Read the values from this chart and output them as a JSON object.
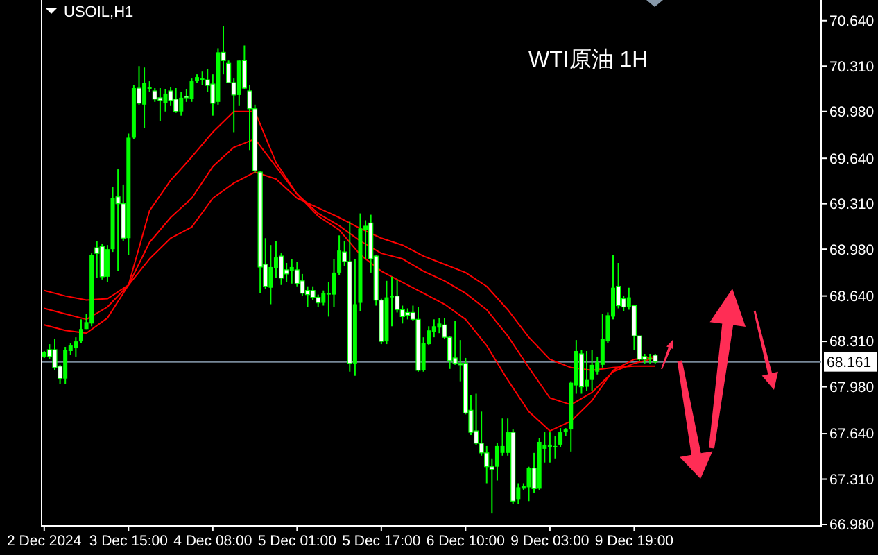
{
  "chart_data": {
    "type": "candlestick",
    "title": "USOIL,H1",
    "annotations": [
      "WTI原油 1H"
    ],
    "color": "#00ff00",
    "categories": [
      "2 Dec 2024",
      null,
      null,
      null,
      null,
      null,
      null,
      null,
      null,
      null,
      null,
      null,
      null,
      null,
      null,
      null,
      "3 Dec 15:00",
      null,
      null,
      null,
      null,
      null,
      null,
      null,
      null,
      null,
      null,
      null,
      null,
      null,
      null,
      null,
      "4 Dec 08:00",
      null,
      null,
      null,
      null,
      null,
      null,
      null,
      null,
      null,
      null,
      null,
      null,
      null,
      null,
      null,
      "5 Dec 01:00",
      null,
      null,
      null,
      null,
      null,
      null,
      null,
      null,
      null,
      null,
      null,
      null,
      null,
      null,
      null,
      "5 Dec 17:00",
      null,
      null,
      null,
      null,
      null,
      null,
      null,
      null,
      null,
      null,
      null,
      null,
      null,
      null,
      null,
      "6 Dec 10:00",
      null,
      null,
      null,
      null,
      null,
      null,
      null,
      null,
      null,
      null,
      null,
      null,
      null,
      null,
      null,
      "9 Dec 03:00",
      null,
      null,
      null,
      null,
      null,
      null,
      null,
      null,
      null,
      null,
      null,
      null,
      null,
      null,
      null,
      "9 Dec 19:00",
      null,
      null,
      null,
      null,
      null,
      null,
      null,
      null,
      null,
      null,
      null,
      null,
      null,
      null,
      null,
      null,
      null,
      null,
      null,
      null,
      null,
      null,
      null,
      null,
      null,
      null,
      null,
      null,
      null,
      null,
      null,
      null,
      null,
      null,
      null
    ],
    "ylim": [
      66.97,
      70.79
    ],
    "yticks": [
      {
        "value": 66.98,
        "label": "66.980"
      },
      {
        "value": 67.31,
        "label": "67.310"
      },
      {
        "value": 67.64,
        "label": "67.640"
      },
      {
        "value": 67.98,
        "label": "67.980"
      },
      {
        "value": 68.31,
        "label": "68.310"
      },
      {
        "value": 68.64,
        "label": "68.640"
      },
      {
        "value": 68.98,
        "label": "68.980"
      },
      {
        "value": 69.31,
        "label": "69.310"
      },
      {
        "value": 69.64,
        "label": "69.640"
      },
      {
        "value": 69.98,
        "label": "69.980"
      },
      {
        "value": 70.31,
        "label": "70.310"
      },
      {
        "value": 70.64,
        "label": "70.640"
      }
    ],
    "ref_lines": [
      {
        "axis": "y",
        "value": 68.161,
        "label": "68.161",
        "color": "#778899"
      }
    ],
    "ohlc": [
      [
        68.2,
        68.24,
        68.19,
        68.23
      ],
      [
        68.25,
        68.29,
        68.18,
        68.2
      ],
      [
        68.25,
        68.33,
        68.1,
        68.12
      ],
      [
        68.13,
        68.14,
        68.0,
        68.04
      ],
      [
        68.04,
        68.27,
        68.0,
        68.25
      ],
      [
        68.24,
        68.3,
        68.21,
        68.28
      ],
      [
        68.26,
        68.34,
        68.2,
        68.31
      ],
      [
        68.31,
        68.47,
        68.3,
        68.4
      ],
      [
        68.4,
        68.51,
        68.4,
        68.45
      ],
      [
        68.44,
        68.95,
        68.42,
        68.94
      ],
      [
        68.99,
        69.04,
        68.77,
        68.95
      ],
      [
        69.0,
        69.02,
        68.76,
        68.78
      ],
      [
        68.78,
        69.01,
        68.74,
        68.98
      ],
      [
        68.98,
        69.43,
        68.96,
        69.35
      ],
      [
        69.36,
        69.56,
        68.82,
        69.31
      ],
      [
        69.31,
        69.45,
        69.04,
        69.06
      ],
      [
        69.06,
        69.82,
        68.94,
        69.79
      ],
      [
        69.79,
        70.17,
        69.78,
        70.15
      ],
      [
        70.15,
        70.31,
        70.03,
        70.04
      ],
      [
        70.03,
        70.3,
        69.86,
        70.19
      ],
      [
        70.14,
        70.2,
        70.12,
        70.16
      ],
      [
        70.13,
        70.15,
        70.05,
        70.07
      ],
      [
        70.08,
        70.15,
        69.91,
        70.06
      ],
      [
        70.04,
        70.14,
        69.98,
        70.11
      ],
      [
        70.13,
        70.16,
        70.02,
        70.06
      ],
      [
        70.07,
        70.15,
        69.97,
        69.98
      ],
      [
        69.98,
        70.12,
        69.95,
        70.08
      ],
      [
        70.09,
        70.14,
        70.05,
        70.08
      ],
      [
        70.07,
        70.22,
        70.05,
        70.2
      ],
      [
        70.2,
        70.25,
        70.19,
        70.23
      ],
      [
        70.21,
        70.27,
        70.17,
        70.22
      ],
      [
        70.21,
        70.29,
        70.12,
        70.17
      ],
      [
        70.18,
        70.25,
        69.95,
        70.04
      ],
      [
        70.05,
        70.44,
        70.03,
        70.41
      ],
      [
        70.41,
        70.6,
        70.25,
        70.35
      ],
      [
        70.33,
        70.35,
        70.19,
        70.19
      ],
      [
        70.19,
        70.22,
        69.83,
        70.1
      ],
      [
        70.1,
        70.35,
        70.02,
        70.35
      ],
      [
        70.35,
        70.46,
        70.14,
        70.15
      ],
      [
        70.13,
        70.17,
        69.7,
        70.0
      ],
      [
        70.0,
        70.03,
        69.53,
        69.55
      ],
      [
        69.54,
        69.55,
        68.66,
        68.85
      ],
      [
        68.87,
        69.06,
        68.69,
        68.71
      ],
      [
        68.7,
        69.01,
        68.58,
        68.85
      ],
      [
        68.84,
        69.04,
        68.77,
        68.92
      ],
      [
        68.93,
        68.95,
        68.72,
        68.77
      ],
      [
        68.83,
        68.88,
        68.74,
        68.8
      ],
      [
        68.82,
        68.91,
        68.73,
        68.85
      ],
      [
        68.83,
        68.89,
        68.71,
        68.73
      ],
      [
        68.75,
        68.8,
        68.64,
        68.66
      ],
      [
        68.68,
        68.71,
        68.56,
        68.65
      ],
      [
        68.68,
        68.71,
        68.61,
        68.63
      ],
      [
        68.63,
        68.65,
        68.56,
        68.59
      ],
      [
        68.59,
        68.68,
        68.57,
        68.66
      ],
      [
        68.65,
        68.74,
        68.49,
        68.66
      ],
      [
        68.65,
        68.91,
        68.56,
        68.81
      ],
      [
        68.81,
        69.08,
        68.79,
        68.97
      ],
      [
        68.96,
        69.04,
        68.86,
        68.89
      ],
      [
        68.89,
        69.18,
        68.09,
        68.15
      ],
      [
        68.15,
        68.91,
        68.06,
        68.58
      ],
      [
        68.59,
        69.24,
        68.53,
        69.13
      ],
      [
        69.12,
        69.19,
        68.91,
        69.15
      ],
      [
        69.17,
        69.23,
        68.81,
        68.91
      ],
      [
        68.93,
        68.94,
        68.57,
        68.61
      ],
      [
        68.61,
        68.62,
        68.29,
        68.31
      ],
      [
        68.31,
        68.75,
        68.29,
        68.63
      ],
      [
        68.63,
        68.78,
        68.42,
        68.64
      ],
      [
        68.64,
        68.76,
        68.52,
        68.54
      ],
      [
        68.54,
        68.57,
        68.44,
        68.49
      ],
      [
        68.52,
        68.55,
        68.47,
        68.5
      ],
      [
        68.52,
        68.57,
        68.46,
        68.47
      ],
      [
        68.47,
        68.56,
        68.09,
        68.1
      ],
      [
        68.1,
        68.34,
        68.09,
        68.3
      ],
      [
        68.29,
        68.42,
        68.28,
        68.39
      ],
      [
        68.38,
        68.47,
        68.34,
        68.42
      ],
      [
        68.41,
        68.48,
        68.37,
        68.44
      ],
      [
        68.43,
        68.48,
        68.33,
        68.34
      ],
      [
        68.34,
        68.35,
        68.11,
        68.17
      ],
      [
        68.19,
        68.46,
        68.14,
        68.15
      ],
      [
        68.15,
        68.32,
        68.02,
        68.14
      ],
      [
        68.15,
        68.19,
        67.78,
        67.79
      ],
      [
        67.81,
        67.92,
        67.63,
        67.65
      ],
      [
        67.66,
        67.93,
        67.56,
        67.57
      ],
      [
        67.57,
        67.8,
        67.48,
        67.5
      ],
      [
        67.5,
        67.55,
        67.28,
        67.4
      ],
      [
        67.4,
        67.46,
        67.06,
        67.38
      ],
      [
        67.4,
        67.57,
        67.3,
        67.55
      ],
      [
        67.5,
        67.75,
        67.48,
        67.55
      ],
      [
        67.5,
        67.75,
        67.48,
        67.65
      ],
      [
        67.65,
        67.67,
        67.13,
        67.15
      ],
      [
        67.16,
        67.28,
        67.13,
        67.25
      ],
      [
        67.24,
        67.28,
        67.23,
        67.26
      ],
      [
        67.25,
        67.4,
        67.15,
        67.39
      ],
      [
        67.39,
        67.5,
        67.21,
        67.24
      ],
      [
        67.24,
        67.61,
        67.23,
        67.58
      ],
      [
        67.53,
        67.65,
        67.43,
        67.56
      ],
      [
        67.54,
        67.65,
        67.43,
        67.56
      ],
      [
        67.54,
        67.62,
        67.46,
        67.55
      ],
      [
        67.56,
        67.68,
        67.54,
        67.65
      ],
      [
        67.65,
        67.68,
        67.62,
        67.67
      ],
      [
        67.67,
        68.02,
        67.51,
        68.01
      ],
      [
        67.99,
        68.32,
        67.93,
        68.24
      ],
      [
        68.22,
        68.25,
        67.93,
        67.98
      ],
      [
        67.98,
        68.24,
        67.95,
        68.03
      ],
      [
        68.03,
        68.25,
        67.95,
        68.14
      ],
      [
        68.09,
        68.2,
        68.07,
        68.16
      ],
      [
        68.14,
        68.51,
        68.12,
        68.33
      ],
      [
        68.31,
        68.52,
        68.3,
        68.5
      ],
      [
        68.49,
        68.94,
        68.47,
        68.7
      ],
      [
        68.71,
        68.88,
        68.55,
        68.57
      ],
      [
        68.62,
        68.64,
        68.53,
        68.56
      ],
      [
        68.56,
        68.7,
        68.54,
        68.63
      ],
      [
        68.57,
        68.57,
        68.25,
        68.35
      ],
      [
        68.35,
        68.35,
        68.17,
        68.18
      ],
      [
        68.2,
        68.22,
        68.15,
        68.18
      ],
      [
        68.19,
        68.22,
        68.15,
        68.19
      ],
      [
        68.21,
        68.22,
        68.15,
        68.161
      ],
      null,
      null,
      null,
      null,
      null,
      null,
      null,
      null,
      null,
      null,
      null,
      null,
      null,
      null,
      null,
      null,
      null,
      null,
      null,
      null,
      null,
      null,
      null,
      null,
      null,
      null,
      null,
      null,
      null,
      null,
      null
    ],
    "series": [
      {
        "type": "line",
        "color": "#ff0000",
        "values": [
          68.43,
          null,
          null,
          null,
          68.39,
          null,
          null,
          null,
          68.37,
          null,
          null,
          null,
          68.48,
          null,
          null,
          null,
          68.72,
          null,
          null,
          null,
          69.26,
          null,
          null,
          null,
          69.48,
          null,
          null,
          null,
          69.65,
          null,
          null,
          null,
          69.83,
          null,
          null,
          null,
          69.98,
          null,
          null,
          null,
          69.98,
          null,
          null,
          null,
          69.61,
          null,
          null,
          null,
          69.38,
          null,
          null,
          null,
          69.22,
          null,
          null,
          null,
          69.12,
          null,
          null,
          null,
          68.94,
          null,
          null,
          null,
          68.82,
          null,
          null,
          null,
          68.74,
          null,
          null,
          null,
          68.66,
          null,
          null,
          null,
          68.58,
          null,
          null,
          null,
          68.47,
          null,
          null,
          null,
          68.28,
          null,
          null,
          null,
          68.03,
          null,
          null,
          null,
          67.8,
          null,
          null,
          null,
          67.66,
          null,
          null,
          null,
          67.73,
          null,
          null,
          null,
          67.88,
          null,
          null,
          null,
          68.1,
          null,
          null,
          null,
          68.18,
          null,
          null,
          null,
          68.2,
          null,
          null,
          null,
          null,
          null,
          null,
          null,
          null,
          null,
          null,
          null,
          null,
          null,
          null,
          null,
          null,
          null,
          null,
          null,
          null,
          null,
          null,
          null,
          null,
          null,
          null,
          null,
          null,
          null,
          null,
          null
        ]
      },
      {
        "type": "line",
        "color": "#ff0000",
        "values": [
          68.55,
          null,
          null,
          null,
          68.51,
          null,
          null,
          null,
          68.47,
          null,
          null,
          null,
          68.56,
          null,
          null,
          null,
          68.72,
          null,
          null,
          null,
          69.03,
          null,
          null,
          null,
          69.21,
          null,
          null,
          null,
          69.35,
          null,
          null,
          null,
          69.58,
          null,
          null,
          null,
          69.72,
          null,
          null,
          null,
          69.78,
          null,
          null,
          null,
          69.58,
          null,
          null,
          null,
          69.38,
          null,
          null,
          null,
          69.24,
          null,
          null,
          null,
          69.15,
          null,
          null,
          null,
          69.04,
          null,
          null,
          null,
          68.95,
          null,
          null,
          null,
          68.91,
          null,
          null,
          null,
          68.82,
          null,
          null,
          null,
          68.75,
          null,
          null,
          null,
          68.66,
          null,
          null,
          null,
          68.54,
          null,
          null,
          null,
          68.35,
          null,
          null,
          null,
          68.12,
          null,
          null,
          null,
          67.9,
          null,
          null,
          null,
          67.85,
          null,
          null,
          null,
          67.94,
          null,
          null,
          null,
          68.09,
          null,
          null,
          null,
          68.15,
          null,
          null,
          null,
          68.19,
          null,
          null,
          null,
          null,
          null,
          null,
          null,
          null,
          null,
          null,
          null,
          null,
          null,
          null,
          null,
          null,
          null,
          null,
          null,
          null,
          null,
          null,
          null,
          null,
          null,
          null,
          null,
          null,
          null,
          null,
          null
        ]
      },
      {
        "type": "line",
        "color": "#ff0000",
        "values": [
          68.68,
          null,
          null,
          null,
          68.64,
          null,
          null,
          null,
          68.61,
          null,
          null,
          null,
          68.62,
          null,
          null,
          null,
          68.72,
          null,
          null,
          null,
          68.91,
          null,
          null,
          null,
          69.06,
          null,
          null,
          null,
          69.14,
          null,
          null,
          null,
          69.35,
          null,
          null,
          null,
          69.46,
          null,
          null,
          null,
          69.54,
          null,
          null,
          null,
          69.49,
          null,
          null,
          null,
          69.35,
          null,
          null,
          null,
          69.28,
          null,
          null,
          null,
          69.21,
          null,
          null,
          null,
          69.13,
          null,
          null,
          null,
          69.06,
          null,
          null,
          null,
          69.01,
          null,
          null,
          null,
          68.93,
          null,
          null,
          null,
          68.87,
          null,
          null,
          null,
          68.81,
          null,
          null,
          null,
          68.71,
          null,
          null,
          null,
          68.54,
          null,
          null,
          null,
          68.34,
          null,
          null,
          null,
          68.18,
          null,
          null,
          null,
          68.12,
          null,
          null,
          null,
          68.1,
          null,
          null,
          null,
          68.12,
          null,
          null,
          null,
          68.13,
          null,
          null,
          null,
          68.13,
          null,
          null,
          null,
          null,
          null,
          null,
          null,
          null,
          null,
          null,
          null,
          null,
          null,
          null,
          null,
          null,
          null,
          null,
          null,
          null,
          null,
          null,
          null,
          null,
          null,
          null,
          null,
          null,
          null,
          null,
          null
        ]
      }
    ]
  }
}
